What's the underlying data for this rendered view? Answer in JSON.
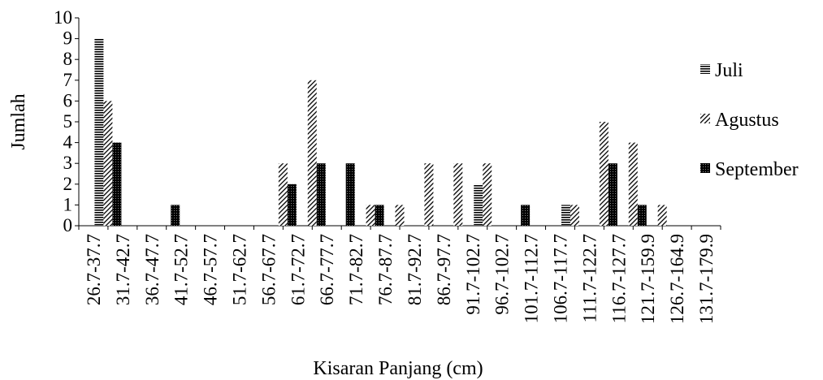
{
  "chart_data": {
    "type": "bar",
    "title": "",
    "xlabel": "Kisaran Panjang (cm)",
    "ylabel": "Jumlah",
    "ylim": [
      0,
      10
    ],
    "yticks": [
      0,
      1,
      2,
      3,
      4,
      5,
      6,
      7,
      8,
      9,
      10
    ],
    "grid": false,
    "legend_position": "right",
    "categories": [
      "26.7-37.7",
      "31.7-42.7",
      "36.7-47.7",
      "41.7-52.7",
      "46.7-57.7",
      "51.7-62.7",
      "56.7-67.7",
      "61.7-72.7",
      "66.7-77.7",
      "71.7-82.7",
      "76.7-87.7",
      "81.7-92.7",
      "86.7-97.7",
      "91.7-102.7",
      "96.7-102.7",
      "101.7-112.7",
      "106.7-117.7",
      "111.7-122.7",
      "116.7-127.7",
      "121.7-159.9",
      "126.7-164.9",
      "131.7-179.9"
    ],
    "series": [
      {
        "name": "Juli",
        "pattern": "horizontal-lines",
        "color": "#000000",
        "values": [
          0,
          9,
          0,
          0,
          0,
          0,
          0,
          0,
          0,
          0,
          0,
          0,
          0,
          0,
          2,
          0,
          0,
          1,
          0,
          0,
          0,
          0
        ]
      },
      {
        "name": "Agustus",
        "pattern": "diagonal-lines",
        "color": "#000000",
        "values": [
          0,
          6,
          0,
          0,
          0,
          0,
          0,
          3,
          7,
          0,
          1,
          1,
          3,
          3,
          3,
          0,
          0,
          1,
          5,
          4,
          1,
          0
        ]
      },
      {
        "name": "September",
        "pattern": "dark-grid",
        "color": "#000000",
        "values": [
          0,
          4,
          0,
          1,
          0,
          0,
          0,
          2,
          3,
          3,
          1,
          0,
          0,
          0,
          0,
          1,
          0,
          0,
          3,
          1,
          0,
          0
        ]
      }
    ]
  }
}
